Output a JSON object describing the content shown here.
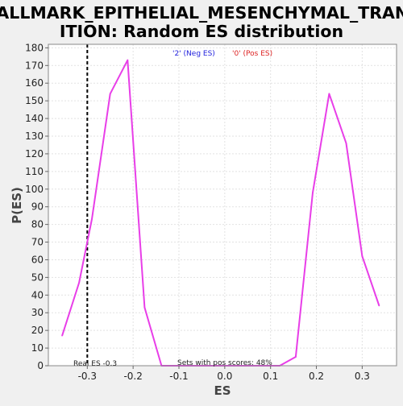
{
  "chart_data": {
    "type": "line",
    "title_line1": "HALLMARK_EPITHELIAL_MESENCHYMAL_TRANS",
    "title_line2": "ITION: Random ES distribution",
    "xlabel": "ES",
    "ylabel": "P(ES)",
    "xlim": [
      -0.385,
      0.375
    ],
    "ylim": [
      0,
      182
    ],
    "xticks": [
      -0.3,
      -0.2,
      -0.1,
      0.0,
      0.1,
      0.2,
      0.3
    ],
    "xtick_labels": [
      "-0.3",
      "-0.2",
      "-0.1",
      "0.0",
      "0.1",
      "0.2",
      "0.3"
    ],
    "yticks": [
      0,
      10,
      20,
      30,
      40,
      50,
      60,
      70,
      80,
      90,
      100,
      110,
      120,
      130,
      140,
      150,
      160,
      170,
      180
    ],
    "ytick_labels": [
      "0",
      "10",
      "20",
      "30",
      "40",
      "50",
      "60",
      "70",
      "80",
      "90",
      "100",
      "110",
      "120",
      "130",
      "140",
      "150",
      "160",
      "170",
      "180"
    ],
    "grid": true,
    "legend_placement": "top-center",
    "legend": [
      {
        "label": "'2' (Neg ES)",
        "color": "#2222dd"
      },
      {
        "label": "'0' (Pos ES)",
        "color": "#dd2222"
      }
    ],
    "series": [
      {
        "color": "#e83ee8",
        "x": [
          -0.355,
          -0.318,
          -0.29,
          -0.25,
          -0.212,
          -0.175,
          -0.138,
          0.12,
          0.155,
          0.192,
          0.228,
          0.265,
          0.3,
          0.337
        ],
        "y": [
          17,
          47,
          83,
          154,
          173,
          33,
          0,
          0,
          5,
          98,
          154,
          126,
          62,
          34
        ]
      }
    ],
    "real_es": {
      "x": -0.3,
      "label": "Real ES -0.3"
    },
    "annotation": "Sets with pos scores: 48%"
  }
}
